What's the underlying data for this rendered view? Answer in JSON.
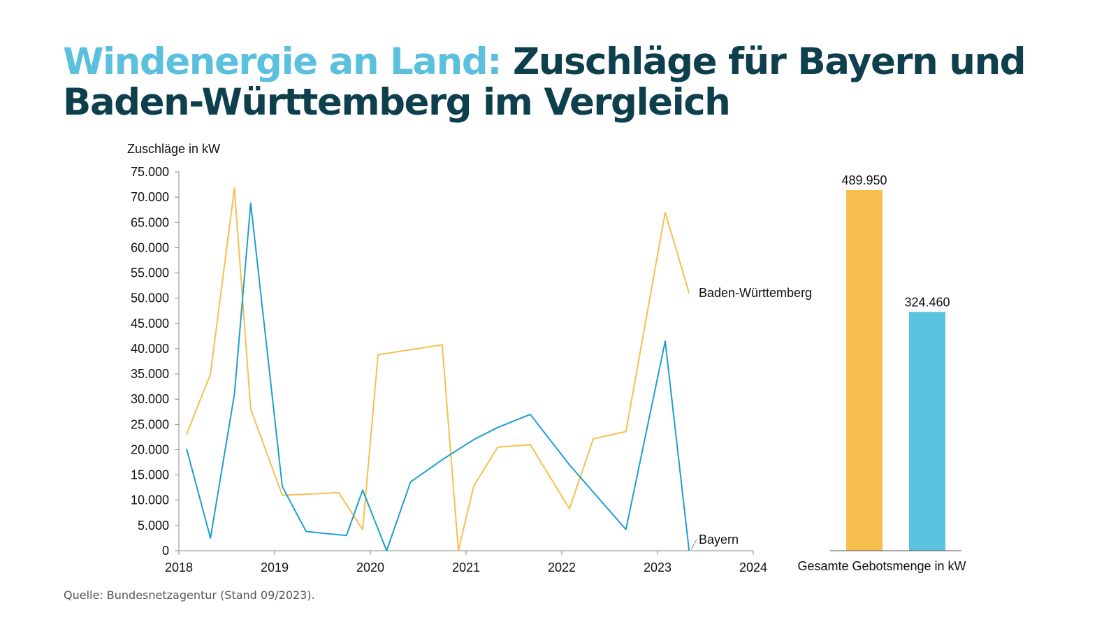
{
  "title": {
    "accent": "Windenergie an Land:",
    "main": "Zuschläge für Bayern und Baden-Württemberg im Vergleich"
  },
  "source": "Quelle: Bundesnetzagentur (Stand 09/2023).",
  "colors": {
    "bw": "#f8bf4f",
    "by": "#1c9fd0",
    "by_bar": "#5bc3e0",
    "title_accent": "#5bc0de",
    "title_main": "#0d3f4c"
  },
  "chart_data": [
    {
      "type": "line",
      "ylabel": "Zuschläge in kW",
      "xlim": [
        2018,
        2024
      ],
      "ylim": [
        0,
        75000
      ],
      "x_ticks": [
        "2018",
        "2019",
        "2020",
        "2021",
        "2022",
        "2023",
        "2024"
      ],
      "y_ticks": [
        "0",
        "5.000",
        "10.000",
        "15.000",
        "20.000",
        "25.000",
        "30.000",
        "35.000",
        "40.000",
        "45.000",
        "50.000",
        "55.000",
        "60.000",
        "65.000",
        "70.000",
        "75.000"
      ],
      "series": [
        {
          "name": "Baden-Württemberg",
          "x": [
            2018.08,
            2018.33,
            2018.58,
            2018.75,
            2019.08,
            2019.33,
            2019.67,
            2019.92,
            2020.08,
            2020.42,
            2020.75,
            2020.92,
            2021.08,
            2021.33,
            2021.67,
            2022.08,
            2022.33,
            2022.67,
            2023.08,
            2023.33
          ],
          "y": [
            23000,
            35000,
            71800,
            28000,
            11000,
            11200,
            11500,
            4200,
            38800,
            39800,
            40800,
            0,
            12800,
            20500,
            21000,
            8300,
            22200,
            23600,
            67000,
            51000
          ]
        },
        {
          "name": "Bayern",
          "x": [
            2018.08,
            2018.33,
            2018.58,
            2018.75,
            2019.08,
            2019.33,
            2019.75,
            2019.92,
            2020.17,
            2020.42,
            2020.75,
            2021.08,
            2021.33,
            2021.67,
            2022.08,
            2022.67,
            2023.08,
            2023.33
          ],
          "y": [
            20200,
            2500,
            31000,
            68800,
            12700,
            3800,
            3000,
            12000,
            0,
            13600,
            18000,
            22000,
            24400,
            27000,
            17000,
            4200,
            41500,
            0
          ]
        }
      ]
    },
    {
      "type": "bar",
      "xlabel": "Gesamte Gebotsmenge in kW",
      "categories": [
        "Baden-Württemberg",
        "Bayern"
      ],
      "values": [
        489950,
        324460
      ],
      "value_labels": [
        "489.950",
        "324.460"
      ]
    }
  ]
}
